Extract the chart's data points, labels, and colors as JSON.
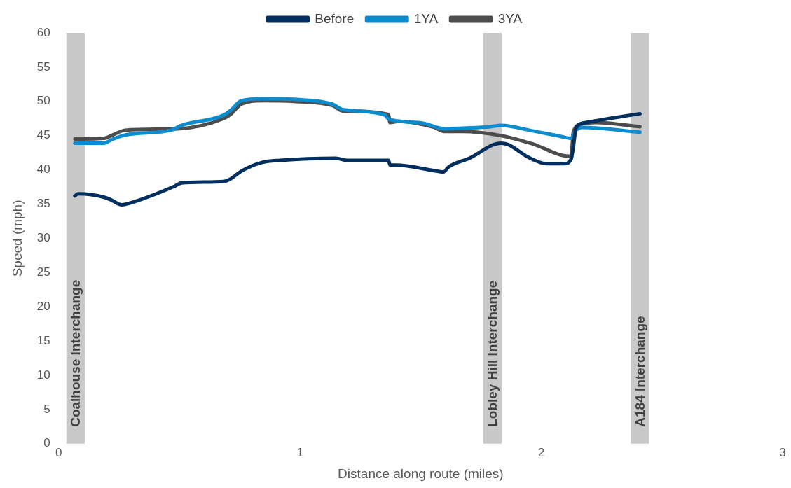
{
  "chart_data": {
    "type": "line",
    "xlabel": "Distance along route (miles)",
    "ylabel": "Speed (mph)",
    "xlim": [
      0,
      3
    ],
    "xticks": [
      0,
      1,
      2,
      3
    ],
    "ylim": [
      0,
      60
    ],
    "yticks": [
      0,
      5,
      10,
      15,
      20,
      25,
      30,
      35,
      40,
      45,
      50,
      55,
      60
    ],
    "grid": false,
    "legend": "top",
    "marker": "none",
    "line_style": "solid",
    "bands": [
      {
        "axis": "x",
        "from": 0.032,
        "to": 0.108,
        "label": "Coalhouse Interchange",
        "color": "#c8c8c8"
      },
      {
        "axis": "x",
        "from": 1.76,
        "to": 1.836,
        "label": "Lobley Hill Interchange",
        "color": "#c8c8c8"
      },
      {
        "axis": "x",
        "from": 2.371,
        "to": 2.447,
        "label": "A184 Interchange",
        "color": "#c8c8c8"
      }
    ],
    "series": [
      {
        "name": "Before",
        "color": "#002f5f",
        "x": [
          0.067,
          0.081,
          0.189,
          0.218,
          0.262,
          0.291,
          0.48,
          0.509,
          0.684,
          0.713,
          0.756,
          0.844,
          0.917,
          1.149,
          1.193,
          1.367,
          1.373,
          1.397,
          1.571,
          1.595,
          1.615,
          1.702,
          1.833,
          1.862,
          1.949,
          2.022,
          2.095,
          2.124,
          2.133,
          2.144,
          2.182,
          2.409
        ],
        "values": [
          36.2,
          36.5,
          36.0,
          35.6,
          34.9,
          35.1,
          37.6,
          38.1,
          38.3,
          38.7,
          39.8,
          41.1,
          41.4,
          41.7,
          41.4,
          41.4,
          40.7,
          40.7,
          39.8,
          39.7,
          40.4,
          41.7,
          43.9,
          43.7,
          41.8,
          40.9,
          40.9,
          41.6,
          43.4,
          46.1,
          46.9,
          48.2
        ]
      },
      {
        "name": "1YA",
        "color": "#0a8ccf",
        "x": [
          0.067,
          0.189,
          0.218,
          0.276,
          0.466,
          0.509,
          0.684,
          0.713,
          0.756,
          0.844,
          0.975,
          1.135,
          1.178,
          1.353,
          1.367,
          1.498,
          1.6,
          1.673,
          1.789,
          1.833,
          1.964,
          2.08,
          2.124,
          2.139,
          2.168,
          2.409
        ],
        "values": [
          43.9,
          43.9,
          44.4,
          45.1,
          45.8,
          46.5,
          48.0,
          48.7,
          50.1,
          50.4,
          50.3,
          49.6,
          48.8,
          48.0,
          47.4,
          46.9,
          46.0,
          46.1,
          46.3,
          46.5,
          45.7,
          44.9,
          44.6,
          45.6,
          46.2,
          45.5
        ]
      },
      {
        "name": "3YA",
        "color": "#4d4d4d",
        "x": [
          0.067,
          0.189,
          0.218,
          0.276,
          0.495,
          0.684,
          0.713,
          0.756,
          0.844,
          0.975,
          1.135,
          1.178,
          1.367,
          1.373,
          1.411,
          1.557,
          1.6,
          1.673,
          1.833,
          1.964,
          2.115,
          2.124,
          2.133,
          2.168,
          2.226,
          2.409
        ],
        "values": [
          44.5,
          44.6,
          45.0,
          45.8,
          46.0,
          47.5,
          48.1,
          49.6,
          50.1,
          50.0,
          49.4,
          48.6,
          48.1,
          46.9,
          47.1,
          46.2,
          45.6,
          45.6,
          45.0,
          43.8,
          42.0,
          42.2,
          45.6,
          46.7,
          46.9,
          46.3
        ]
      }
    ]
  }
}
